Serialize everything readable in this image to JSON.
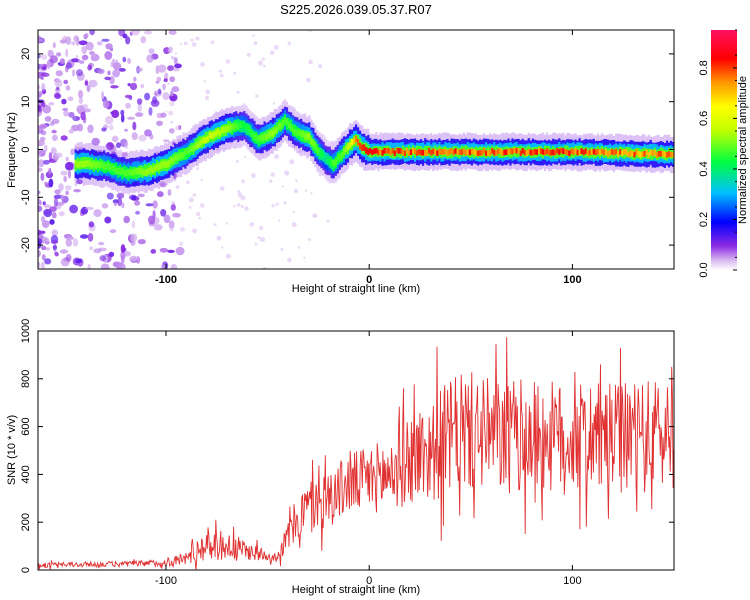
{
  "title": "S225.2026.039.05.37.R07",
  "chart_data": [
    {
      "type": "heatmap",
      "title": "S225.2026.039.05.37.R07",
      "xlabel": "Height of straight line (km)",
      "ylabel": "Frequency (Hz)",
      "xlim": [
        -163,
        150
      ],
      "ylim": [
        -25,
        25
      ],
      "xticks": [
        -100,
        0,
        100
      ],
      "yticks": [
        -20,
        -10,
        0,
        10,
        20
      ],
      "colorbar": {
        "label": "Normalized spectral amplitude",
        "range": [
          0,
          0.95
        ],
        "ticks": [
          0.0,
          0.2,
          0.4,
          0.6,
          0.8
        ]
      },
      "ridge": {
        "x": [
          -140,
          -130,
          -120,
          -110,
          -100,
          -90,
          -80,
          -70,
          -62,
          -55,
          -48,
          -42,
          -36,
          -30,
          -26,
          -22,
          -18,
          -14,
          -10,
          -7,
          -4,
          0,
          10,
          50,
          100,
          150
        ],
        "y": [
          -3,
          -3.5,
          -5,
          -4.5,
          -3,
          -0.5,
          2.5,
          4.5,
          5,
          2,
          3.5,
          6,
          3.5,
          2.5,
          0,
          -2,
          -3,
          -1,
          1,
          2,
          0.5,
          -0.5,
          -0.5,
          -0.5,
          -0.5,
          -1
        ],
        "peak": [
          0.55,
          0.5,
          0.5,
          0.55,
          0.55,
          0.5,
          0.6,
          0.55,
          0.45,
          0.5,
          0.55,
          0.5,
          0.5,
          0.55,
          0.5,
          0.4,
          0.5,
          0.5,
          0.6,
          0.8,
          0.85,
          0.9,
          0.9,
          0.9,
          0.9,
          0.85
        ]
      }
    },
    {
      "type": "line",
      "xlabel": "Height of straight line (km)",
      "ylabel": "SNR (10 * v/v)",
      "xlim": [
        -163,
        150
      ],
      "ylim": [
        0,
        1000
      ],
      "xticks": [
        -100,
        0,
        100
      ],
      "yticks": [
        0,
        200,
        400,
        600,
        800,
        1000
      ],
      "series": [
        {
          "name": "SNR",
          "color": "#e03030",
          "envelope_x": [
            -163,
            -120,
            -100,
            -90,
            -80,
            -70,
            -60,
            -50,
            -45,
            -40,
            -35,
            -30,
            -20,
            -10,
            0,
            10,
            20,
            30,
            40,
            50,
            60,
            80,
            100,
            120,
            140,
            150
          ],
          "envelope_mean": [
            20,
            25,
            30,
            50,
            110,
            100,
            80,
            60,
            55,
            140,
            220,
            260,
            300,
            360,
            380,
            400,
            470,
            500,
            560,
            580,
            560,
            560,
            550,
            550,
            560,
            580
          ],
          "envelope_spread": [
            10,
            12,
            15,
            30,
            70,
            60,
            40,
            20,
            20,
            70,
            100,
            120,
            120,
            130,
            140,
            160,
            200,
            220,
            240,
            250,
            240,
            240,
            230,
            230,
            240,
            240
          ]
        }
      ]
    }
  ]
}
